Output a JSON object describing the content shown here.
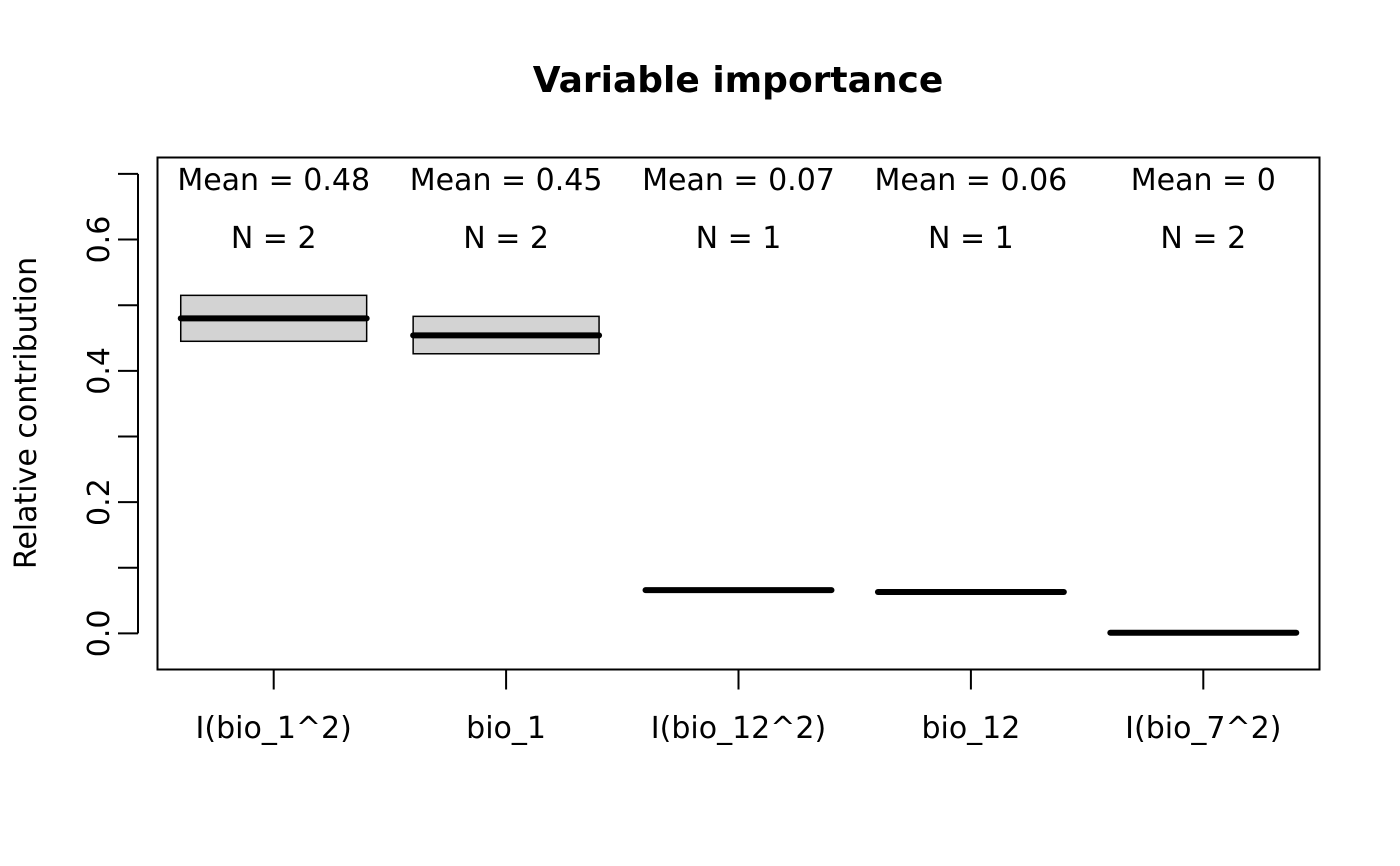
{
  "chart_data": {
    "type": "boxplot",
    "title": "Variable importance",
    "xlabel": "",
    "ylabel": "Relative contribution",
    "ylim": [
      -0.055,
      0.725
    ],
    "yticks": [
      0.0,
      0.1,
      0.2,
      0.3,
      0.4,
      0.5,
      0.6,
      0.7
    ],
    "ytick_labels": [
      "0.0",
      "",
      "0.2",
      "",
      "0.4",
      "",
      "0.6",
      ""
    ],
    "grid": false,
    "box_color": "#d3d3d3",
    "categories": [
      "I(bio_1^2)",
      "bio_1",
      "I(bio_12^2)",
      "bio_12",
      "I(bio_7^2)"
    ],
    "boxes": [
      {
        "q1": 0.445,
        "median": 0.48,
        "q3": 0.515,
        "mean_label": "Mean = 0.48",
        "n_label": "N = 2"
      },
      {
        "q1": 0.426,
        "median": 0.454,
        "q3": 0.483,
        "mean_label": "Mean = 0.45",
        "n_label": "N = 2"
      },
      {
        "q1": 0.066,
        "median": 0.066,
        "q3": 0.066,
        "mean_label": "Mean = 0.07",
        "n_label": "N = 1"
      },
      {
        "q1": 0.063,
        "median": 0.063,
        "q3": 0.063,
        "mean_label": "Mean = 0.06",
        "n_label": "N = 1"
      },
      {
        "q1": 0.001,
        "median": 0.001,
        "q3": 0.001,
        "mean_label": "Mean = 0",
        "n_label": "N = 2"
      }
    ]
  }
}
